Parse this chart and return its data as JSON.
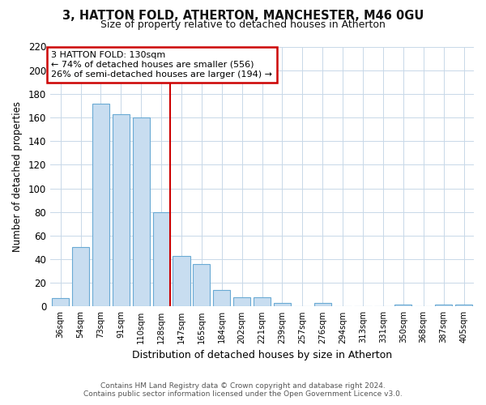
{
  "title": "3, HATTON FOLD, ATHERTON, MANCHESTER, M46 0GU",
  "subtitle": "Size of property relative to detached houses in Atherton",
  "xlabel": "Distribution of detached houses by size in Atherton",
  "ylabel": "Number of detached properties",
  "bar_labels": [
    "36sqm",
    "54sqm",
    "73sqm",
    "91sqm",
    "110sqm",
    "128sqm",
    "147sqm",
    "165sqm",
    "184sqm",
    "202sqm",
    "221sqm",
    "239sqm",
    "257sqm",
    "276sqm",
    "294sqm",
    "313sqm",
    "331sqm",
    "350sqm",
    "368sqm",
    "387sqm",
    "405sqm"
  ],
  "bar_values": [
    7,
    50,
    172,
    163,
    160,
    80,
    43,
    36,
    14,
    8,
    8,
    3,
    0,
    3,
    0,
    0,
    0,
    2,
    0,
    2,
    2
  ],
  "bar_color": "#c8ddf0",
  "bar_edge_color": "#6aaad4",
  "highlight_bar_index": 5,
  "highlight_line_color": "#cc0000",
  "annotation_title": "3 HATTON FOLD: 130sqm",
  "annotation_line1": "← 74% of detached houses are smaller (556)",
  "annotation_line2": "26% of semi-detached houses are larger (194) →",
  "annotation_box_color": "#ffffff",
  "annotation_box_edge_color": "#cc0000",
  "ylim": [
    0,
    220
  ],
  "yticks": [
    0,
    20,
    40,
    60,
    80,
    100,
    120,
    140,
    160,
    180,
    200,
    220
  ],
  "footer_line1": "Contains HM Land Registry data © Crown copyright and database right 2024.",
  "footer_line2": "Contains public sector information licensed under the Open Government Licence v3.0.",
  "background_color": "#ffffff",
  "grid_color": "#c8d8e8"
}
